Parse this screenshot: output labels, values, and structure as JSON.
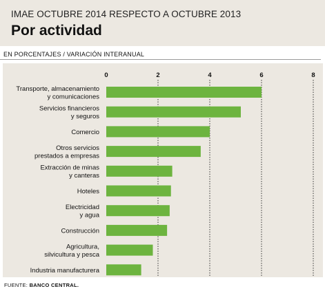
{
  "header": {
    "subtitle": "IMAE OCTUBRE 2014 RESPECTO A OCTUBRE 2013",
    "title": "Por actividad"
  },
  "unit_label": "EN PORCENTAJES / VARIACIÓN INTERANUAL",
  "source": {
    "prefix": "FUENTE: ",
    "name": "BANCO CENTRAL."
  },
  "colors": {
    "bar": "#6db43f",
    "panel": "#ece8e1",
    "gridline": "#333333"
  },
  "chart_data": {
    "type": "bar",
    "orientation": "horizontal",
    "categories": [
      [
        "Transporte, almacenamiento",
        "y comunicaciones"
      ],
      [
        "Servicios financieros",
        "y seguros"
      ],
      [
        "Comercio"
      ],
      [
        "Otros servicios",
        "prestados a empresas"
      ],
      [
        "Extracción de minas",
        "y canteras"
      ],
      [
        "Hoteles"
      ],
      [
        "Electricidad",
        "y agua"
      ],
      [
        "Construcción"
      ],
      [
        "Agricultura,",
        "silvicultura y pesca"
      ],
      [
        "Industria manufacturera"
      ]
    ],
    "values": [
      6.0,
      5.2,
      4.0,
      3.65,
      2.55,
      2.5,
      2.45,
      2.35,
      1.8,
      1.35
    ],
    "xlim": [
      0,
      8
    ],
    "xticks": [
      "0",
      "2",
      "4",
      "6",
      "8"
    ],
    "grid": true,
    "title": "Por actividad"
  }
}
